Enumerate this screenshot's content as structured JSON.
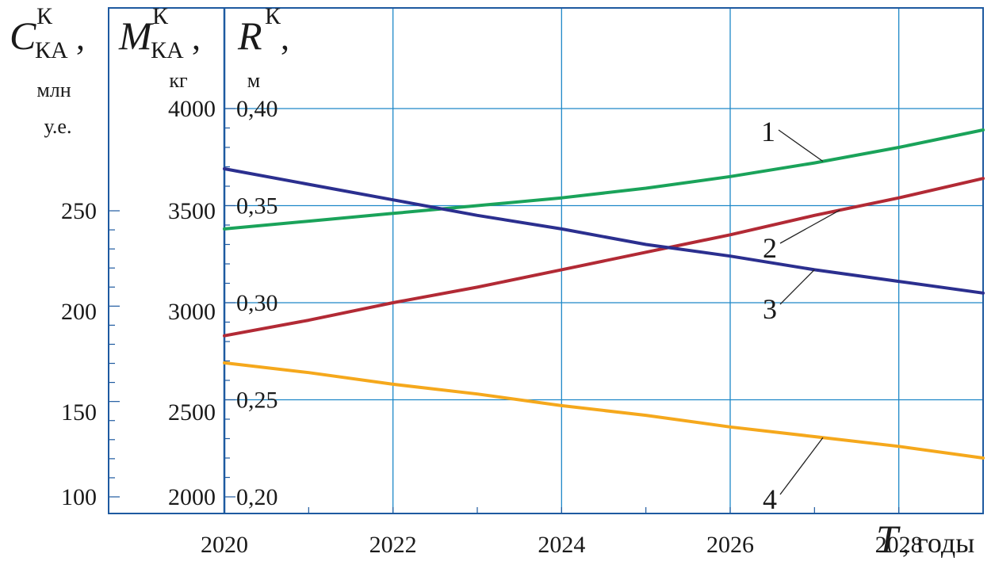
{
  "chart_data": {
    "type": "line",
    "x": [
      2020,
      2021,
      2022,
      2023,
      2024,
      2025,
      2026,
      2027,
      2028,
      2029
    ],
    "xlim": [
      2020,
      2029
    ],
    "x_ticks": [
      "2020",
      "2022",
      "2024",
      "2026",
      "2028"
    ],
    "grid": true,
    "x_axis_label": {
      "symbol": "T",
      "unit": ", годы"
    },
    "y_axes": [
      {
        "id": "cost",
        "symbol": "C",
        "superscript": "К",
        "subscript": "КА",
        "sep": ",",
        "unit_lines": [
          "млн",
          "у.е."
        ],
        "ticks": [
          "100",
          "150",
          "200",
          "250"
        ],
        "range": [
          100,
          250
        ]
      },
      {
        "id": "mass",
        "symbol": "M",
        "superscript": "К",
        "subscript": "КА",
        "sep": ",",
        "unit_lines": [
          "кг"
        ],
        "ticks": [
          "2000",
          "2500",
          "3000",
          "3500",
          "4000"
        ],
        "range": [
          2000,
          4000
        ]
      },
      {
        "id": "radius",
        "symbol": "R",
        "superscript": "К",
        "subscript": "",
        "sep": ",",
        "unit_lines": [
          "м"
        ],
        "ticks": [
          "0,20",
          "0,25",
          "0,30",
          "0,35",
          "0,40"
        ],
        "range": [
          0.2,
          0.4
        ]
      }
    ],
    "series": [
      {
        "label": "1",
        "color": "#1aa35a",
        "values": [
          0.338,
          0.342,
          0.346,
          0.35,
          0.354,
          0.359,
          0.365,
          0.372,
          0.38,
          0.389
        ]
      },
      {
        "label": "2",
        "color": "#b22a35",
        "values": [
          0.283,
          0.291,
          0.3,
          0.308,
          0.317,
          0.326,
          0.335,
          0.345,
          0.354,
          0.364
        ]
      },
      {
        "label": "3",
        "color": "#2b2f8f",
        "values": [
          0.369,
          0.361,
          0.353,
          0.345,
          0.338,
          0.33,
          0.324,
          0.317,
          0.311,
          0.305
        ]
      },
      {
        "label": "4",
        "color": "#f5a81c",
        "values": [
          0.269,
          0.264,
          0.258,
          0.253,
          0.247,
          0.242,
          0.236,
          0.231,
          0.226,
          0.22
        ]
      }
    ]
  }
}
